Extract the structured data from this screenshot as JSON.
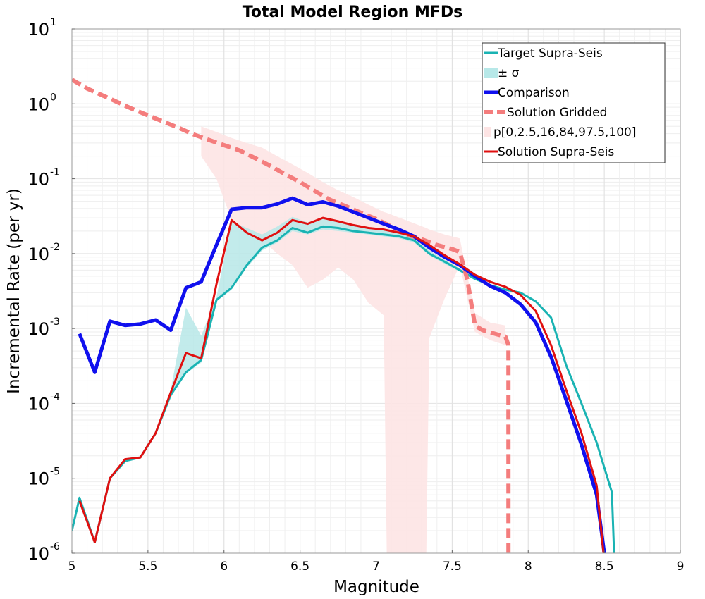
{
  "chart_data": {
    "type": "line",
    "title": "Total Model Region MFDs",
    "xlabel": "Magnitude",
    "ylabel": "Incremental Rate (per yr)",
    "xlim": [
      5,
      9
    ],
    "ylim": [
      1e-06,
      10
    ],
    "yscale": "log",
    "grid": true,
    "legend_position": "top-right",
    "x_ticks": [
      "5",
      "5.5",
      "6",
      "6.5",
      "7",
      "7.5",
      "8",
      "8.5",
      "9"
    ],
    "y_ticks": [
      {
        "base": "10",
        "exp": "-6",
        "value": 1e-06
      },
      {
        "base": "10",
        "exp": "-5",
        "value": 1e-05
      },
      {
        "base": "10",
        "exp": "-4",
        "value": 0.0001
      },
      {
        "base": "10",
        "exp": "-3",
        "value": 0.001
      },
      {
        "base": "10",
        "exp": "-2",
        "value": 0.01
      },
      {
        "base": "10",
        "exp": "-1",
        "value": 0.1
      },
      {
        "base": "10",
        "exp": "0",
        "value": 1
      },
      {
        "base": "10",
        "exp": "1",
        "value": 10
      }
    ],
    "colors": {
      "target": "#1ab3b3",
      "sigma_band": "#b7e8e8",
      "comparison": "#1010ee",
      "gridded": "#f47d7d",
      "percentile_band": "#fde4e4",
      "supra": "#e01010"
    },
    "legend": [
      {
        "key": "target",
        "label": "Target Supra-Seis"
      },
      {
        "key": "sigma",
        "label": "± σ"
      },
      {
        "key": "comparison",
        "label": "Comparison"
      },
      {
        "key": "gridded",
        "label": "Solution Gridded"
      },
      {
        "key": "percentile",
        "label": "p[0,2.5,16,84,97.5,100]"
      },
      {
        "key": "supra",
        "label": "Solution Supra-Seis"
      }
    ],
    "series": [
      {
        "name": "Target Supra-Seis",
        "x": [
          5.0,
          5.05,
          5.15,
          5.25,
          5.35,
          5.45,
          5.55,
          5.65,
          5.75,
          5.85,
          5.95,
          6.05,
          6.15,
          6.25,
          6.35,
          6.45,
          6.55,
          6.65,
          6.75,
          6.85,
          6.95,
          7.05,
          7.15,
          7.25,
          7.35,
          7.45,
          7.55,
          7.65,
          7.75,
          7.85,
          7.95,
          8.05,
          8.15,
          8.25,
          8.35,
          8.45,
          8.55,
          8.57
        ],
        "y": [
          2e-06,
          5.5e-06,
          1.4e-06,
          1e-05,
          1.7e-05,
          1.9e-05,
          4e-05,
          0.00013,
          0.00026,
          0.00038,
          0.0024,
          0.0035,
          0.007,
          0.012,
          0.015,
          0.022,
          0.019,
          0.023,
          0.022,
          0.02,
          0.019,
          0.018,
          0.017,
          0.015,
          0.01,
          0.0078,
          0.006,
          0.0046,
          0.0038,
          0.0033,
          0.003,
          0.0023,
          0.0014,
          0.00032,
          0.0001,
          3e-05,
          6.5e-06,
          5e-07
        ]
      },
      {
        "name": "± σ",
        "x": [
          5.65,
          5.75,
          5.85,
          5.95,
          6.05,
          6.15,
          6.25,
          6.35,
          6.45,
          6.55,
          6.65,
          6.75,
          6.85,
          6.95,
          7.05,
          7.15,
          7.25,
          7.35,
          7.45,
          7.55,
          7.65
        ],
        "upper": [
          0.00015,
          0.0019,
          0.0008,
          0.0026,
          0.027,
          0.022,
          0.018,
          0.023,
          0.031,
          0.026,
          0.03,
          0.027,
          0.024,
          0.022,
          0.021,
          0.019,
          0.016,
          0.011,
          0.0083,
          0.0063,
          0.0048
        ],
        "lower": [
          0.00012,
          0.00025,
          0.00035,
          0.0023,
          0.0033,
          0.0065,
          0.011,
          0.014,
          0.02,
          0.018,
          0.021,
          0.02,
          0.019,
          0.018,
          0.017,
          0.016,
          0.014,
          0.0095,
          0.0073,
          0.0057,
          0.0044
        ]
      },
      {
        "name": "Comparison",
        "x": [
          5.05,
          5.15,
          5.25,
          5.35,
          5.45,
          5.55,
          5.65,
          5.75,
          5.85,
          5.95,
          6.05,
          6.15,
          6.25,
          6.35,
          6.45,
          6.55,
          6.65,
          6.75,
          6.85,
          6.95,
          7.05,
          7.15,
          7.25,
          7.35,
          7.45,
          7.55,
          7.65,
          7.75,
          7.85,
          7.95,
          8.05,
          8.15,
          8.25,
          8.35,
          8.45,
          8.52
        ],
        "y": [
          0.00085,
          0.00026,
          0.00125,
          0.0011,
          0.00115,
          0.0013,
          0.00095,
          0.0035,
          0.0042,
          0.013,
          0.039,
          0.041,
          0.041,
          0.046,
          0.055,
          0.045,
          0.049,
          0.043,
          0.036,
          0.03,
          0.025,
          0.021,
          0.017,
          0.012,
          0.009,
          0.007,
          0.005,
          0.0037,
          0.003,
          0.0021,
          0.0012,
          0.00042,
          0.00011,
          2.8e-05,
          6e-06,
          5e-07
        ]
      },
      {
        "name": "Solution Gridded",
        "x": [
          5.0,
          5.1,
          5.2,
          5.3,
          5.4,
          5.5,
          5.6,
          5.7,
          5.8,
          5.9,
          6.0,
          6.1,
          6.2,
          6.3,
          6.4,
          6.5,
          6.6,
          6.7,
          6.8,
          6.9,
          7.0,
          7.1,
          7.2,
          7.3,
          7.4,
          7.5,
          7.55,
          7.6,
          7.65,
          7.7,
          7.8,
          7.85,
          7.87,
          7.87
        ],
        "y": [
          2.1,
          1.6,
          1.3,
          1.05,
          0.85,
          0.7,
          0.58,
          0.48,
          0.39,
          0.33,
          0.28,
          0.24,
          0.19,
          0.15,
          0.115,
          0.09,
          0.068,
          0.052,
          0.043,
          0.035,
          0.029,
          0.023,
          0.018,
          0.0155,
          0.013,
          0.0115,
          0.0105,
          0.0045,
          0.0011,
          0.00095,
          0.00083,
          0.00078,
          0.0006,
          1e-06
        ]
      },
      {
        "name": "p[0,2.5,16,84,97.5,100]",
        "x": [
          5.85,
          5.95,
          6.05,
          6.15,
          6.25,
          6.35,
          6.45,
          6.55,
          6.65,
          6.75,
          6.85,
          6.95,
          7.05,
          7.07,
          7.33,
          7.35,
          7.45,
          7.55,
          7.65,
          7.75,
          7.85
        ],
        "upper": [
          0.5,
          0.42,
          0.35,
          0.3,
          0.26,
          0.2,
          0.155,
          0.12,
          0.09,
          0.07,
          0.057,
          0.045,
          0.036,
          0.035,
          0.022,
          0.021,
          0.018,
          0.016,
          0.0016,
          0.0012,
          0.0011
        ],
        "lower": [
          0.2,
          0.1,
          0.028,
          0.02,
          0.015,
          0.01,
          0.007,
          0.0035,
          0.0045,
          0.0065,
          0.0045,
          0.0022,
          0.0015,
          1e-06,
          1e-06,
          0.00075,
          0.0025,
          0.007,
          0.0009,
          0.0007,
          0.0006
        ]
      },
      {
        "name": "Solution Supra-Seis",
        "x": [
          5.05,
          5.15,
          5.25,
          5.35,
          5.45,
          5.55,
          5.65,
          5.75,
          5.85,
          5.95,
          6.05,
          6.15,
          6.25,
          6.35,
          6.45,
          6.55,
          6.65,
          6.75,
          6.85,
          6.95,
          7.05,
          7.15,
          7.25,
          7.35,
          7.45,
          7.55,
          7.65,
          7.75,
          7.85,
          7.95,
          8.05,
          8.15,
          8.25,
          8.35,
          8.45,
          8.51
        ],
        "y": [
          5e-06,
          1.4e-06,
          1e-05,
          1.8e-05,
          1.9e-05,
          4e-05,
          0.00014,
          0.00047,
          0.0004,
          0.0039,
          0.028,
          0.019,
          0.015,
          0.019,
          0.028,
          0.025,
          0.03,
          0.027,
          0.024,
          0.022,
          0.021,
          0.019,
          0.017,
          0.013,
          0.0095,
          0.0072,
          0.0052,
          0.0042,
          0.0036,
          0.0028,
          0.0017,
          0.0006,
          0.00015,
          4e-05,
          8e-06,
          5e-07
        ]
      }
    ]
  }
}
